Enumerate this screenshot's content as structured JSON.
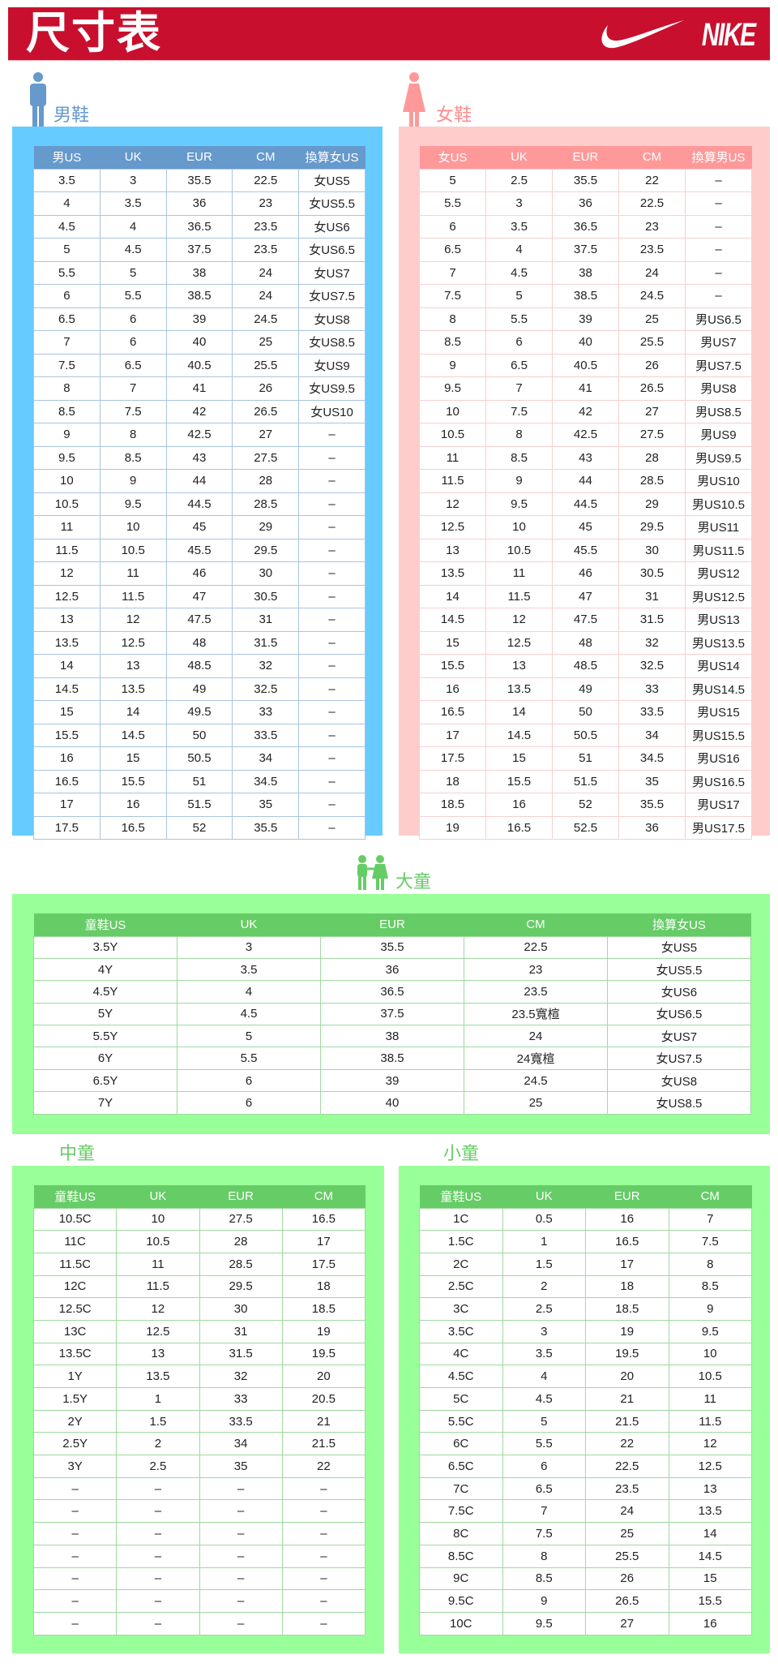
{
  "header": {
    "title": "尺寸表",
    "logo_text": "NIKE",
    "color": "#c8102e"
  },
  "men": {
    "label": "男鞋",
    "colors": {
      "panel": "#66ccff",
      "header": "#6699cc",
      "label": "#6699cc"
    },
    "columns": [
      "男US",
      "UK",
      "EUR",
      "CM",
      "換算女US"
    ],
    "rows": [
      [
        "3.5",
        "3",
        "35.5",
        "22.5",
        "女US5"
      ],
      [
        "4",
        "3.5",
        "36",
        "23",
        "女US5.5"
      ],
      [
        "4.5",
        "4",
        "36.5",
        "23.5",
        "女US6"
      ],
      [
        "5",
        "4.5",
        "37.5",
        "23.5",
        "女US6.5"
      ],
      [
        "5.5",
        "5",
        "38",
        "24",
        "女US7"
      ],
      [
        "6",
        "5.5",
        "38.5",
        "24",
        "女US7.5"
      ],
      [
        "6.5",
        "6",
        "39",
        "24.5",
        "女US8"
      ],
      [
        "7",
        "6",
        "40",
        "25",
        "女US8.5"
      ],
      [
        "7.5",
        "6.5",
        "40.5",
        "25.5",
        "女US9"
      ],
      [
        "8",
        "7",
        "41",
        "26",
        "女US9.5"
      ],
      [
        "8.5",
        "7.5",
        "42",
        "26.5",
        "女US10"
      ],
      [
        "9",
        "8",
        "42.5",
        "27",
        "–"
      ],
      [
        "9.5",
        "8.5",
        "43",
        "27.5",
        "–"
      ],
      [
        "10",
        "9",
        "44",
        "28",
        "–"
      ],
      [
        "10.5",
        "9.5",
        "44.5",
        "28.5",
        "–"
      ],
      [
        "11",
        "10",
        "45",
        "29",
        "–"
      ],
      [
        "11.5",
        "10.5",
        "45.5",
        "29.5",
        "–"
      ],
      [
        "12",
        "11",
        "46",
        "30",
        "–"
      ],
      [
        "12.5",
        "11.5",
        "47",
        "30.5",
        "–"
      ],
      [
        "13",
        "12",
        "47.5",
        "31",
        "–"
      ],
      [
        "13.5",
        "12.5",
        "48",
        "31.5",
        "–"
      ],
      [
        "14",
        "13",
        "48.5",
        "32",
        "–"
      ],
      [
        "14.5",
        "13.5",
        "49",
        "32.5",
        "–"
      ],
      [
        "15",
        "14",
        "49.5",
        "33",
        "–"
      ],
      [
        "15.5",
        "14.5",
        "50",
        "33.5",
        "–"
      ],
      [
        "16",
        "15",
        "50.5",
        "34",
        "–"
      ],
      [
        "16.5",
        "15.5",
        "51",
        "34.5",
        "–"
      ],
      [
        "17",
        "16",
        "51.5",
        "35",
        "–"
      ],
      [
        "17.5",
        "16.5",
        "52",
        "35.5",
        "–"
      ]
    ]
  },
  "women": {
    "label": "女鞋",
    "colors": {
      "panel": "#ffcccc",
      "header": "#ff9999",
      "label": "#ff8c8c"
    },
    "columns": [
      "女US",
      "UK",
      "EUR",
      "CM",
      "換算男US"
    ],
    "rows": [
      [
        "5",
        "2.5",
        "35.5",
        "22",
        "–"
      ],
      [
        "5.5",
        "3",
        "36",
        "22.5",
        "–"
      ],
      [
        "6",
        "3.5",
        "36.5",
        "23",
        "–"
      ],
      [
        "6.5",
        "4",
        "37.5",
        "23.5",
        "–"
      ],
      [
        "7",
        "4.5",
        "38",
        "24",
        "–"
      ],
      [
        "7.5",
        "5",
        "38.5",
        "24.5",
        "–"
      ],
      [
        "8",
        "5.5",
        "39",
        "25",
        "男US6.5"
      ],
      [
        "8.5",
        "6",
        "40",
        "25.5",
        "男US7"
      ],
      [
        "9",
        "6.5",
        "40.5",
        "26",
        "男US7.5"
      ],
      [
        "9.5",
        "7",
        "41",
        "26.5",
        "男US8"
      ],
      [
        "10",
        "7.5",
        "42",
        "27",
        "男US8.5"
      ],
      [
        "10.5",
        "8",
        "42.5",
        "27.5",
        "男US9"
      ],
      [
        "11",
        "8.5",
        "43",
        "28",
        "男US9.5"
      ],
      [
        "11.5",
        "9",
        "44",
        "28.5",
        "男US10"
      ],
      [
        "12",
        "9.5",
        "44.5",
        "29",
        "男US10.5"
      ],
      [
        "12.5",
        "10",
        "45",
        "29.5",
        "男US11"
      ],
      [
        "13",
        "10.5",
        "45.5",
        "30",
        "男US11.5"
      ],
      [
        "13.5",
        "11",
        "46",
        "30.5",
        "男US12"
      ],
      [
        "14",
        "11.5",
        "47",
        "31",
        "男US12.5"
      ],
      [
        "14.5",
        "12",
        "47.5",
        "31.5",
        "男US13"
      ],
      [
        "15",
        "12.5",
        "48",
        "32",
        "男US13.5"
      ],
      [
        "15.5",
        "13",
        "48.5",
        "32.5",
        "男US14"
      ],
      [
        "16",
        "13.5",
        "49",
        "33",
        "男US14.5"
      ],
      [
        "16.5",
        "14",
        "50",
        "33.5",
        "男US15"
      ],
      [
        "17",
        "14.5",
        "50.5",
        "34",
        "男US15.5"
      ],
      [
        "17.5",
        "15",
        "51",
        "34.5",
        "男US16"
      ],
      [
        "18",
        "15.5",
        "51.5",
        "35",
        "男US16.5"
      ],
      [
        "18.5",
        "16",
        "52",
        "35.5",
        "男US17"
      ],
      [
        "19",
        "16.5",
        "52.5",
        "36",
        "男US17.5"
      ]
    ]
  },
  "big_kids": {
    "label": "大童",
    "colors": {
      "panel": "#99ff99",
      "header": "#66cc66",
      "label": "#66cc66"
    },
    "columns": [
      "童鞋US",
      "UK",
      "EUR",
      "CM",
      "換算女US"
    ],
    "rows": [
      [
        "3.5Y",
        "3",
        "35.5",
        "22.5",
        "女US5"
      ],
      [
        "4Y",
        "3.5",
        "36",
        "23",
        "女US5.5"
      ],
      [
        "4.5Y",
        "4",
        "36.5",
        "23.5",
        "女US6"
      ],
      [
        "5Y",
        "4.5",
        "37.5",
        "23.5寬楦",
        "女US6.5"
      ],
      [
        "5.5Y",
        "5",
        "38",
        "24",
        "女US7"
      ],
      [
        "6Y",
        "5.5",
        "38.5",
        "24寬楦",
        "女US7.5"
      ],
      [
        "6.5Y",
        "6",
        "39",
        "24.5",
        "女US8"
      ],
      [
        "7Y",
        "6",
        "40",
        "25",
        "女US8.5"
      ]
    ]
  },
  "mid_kids": {
    "label": "中童",
    "columns": [
      "童鞋US",
      "UK",
      "EUR",
      "CM"
    ],
    "rows": [
      [
        "10.5C",
        "10",
        "27.5",
        "16.5"
      ],
      [
        "11C",
        "10.5",
        "28",
        "17"
      ],
      [
        "11.5C",
        "11",
        "28.5",
        "17.5"
      ],
      [
        "12C",
        "11.5",
        "29.5",
        "18"
      ],
      [
        "12.5C",
        "12",
        "30",
        "18.5"
      ],
      [
        "13C",
        "12.5",
        "31",
        "19"
      ],
      [
        "13.5C",
        "13",
        "31.5",
        "19.5"
      ],
      [
        "1Y",
        "13.5",
        "32",
        "20"
      ],
      [
        "1.5Y",
        "1",
        "33",
        "20.5"
      ],
      [
        "2Y",
        "1.5",
        "33.5",
        "21"
      ],
      [
        "2.5Y",
        "2",
        "34",
        "21.5"
      ],
      [
        "3Y",
        "2.5",
        "35",
        "22"
      ],
      [
        "–",
        "–",
        "–",
        "–"
      ],
      [
        "–",
        "–",
        "–",
        "–"
      ],
      [
        "–",
        "–",
        "–",
        "–"
      ],
      [
        "–",
        "–",
        "–",
        "–"
      ],
      [
        "–",
        "–",
        "–",
        "–"
      ],
      [
        "–",
        "–",
        "–",
        "–"
      ],
      [
        "–",
        "–",
        "–",
        "–"
      ]
    ]
  },
  "small_kids": {
    "label": "小童",
    "columns": [
      "童鞋US",
      "UK",
      "EUR",
      "CM"
    ],
    "rows": [
      [
        "1C",
        "0.5",
        "16",
        "7"
      ],
      [
        "1.5C",
        "1",
        "16.5",
        "7.5"
      ],
      [
        "2C",
        "1.5",
        "17",
        "8"
      ],
      [
        "2.5C",
        "2",
        "18",
        "8.5"
      ],
      [
        "3C",
        "2.5",
        "18.5",
        "9"
      ],
      [
        "3.5C",
        "3",
        "19",
        "9.5"
      ],
      [
        "4C",
        "3.5",
        "19.5",
        "10"
      ],
      [
        "4.5C",
        "4",
        "20",
        "10.5"
      ],
      [
        "5C",
        "4.5",
        "21",
        "11"
      ],
      [
        "5.5C",
        "5",
        "21.5",
        "11.5"
      ],
      [
        "6C",
        "5.5",
        "22",
        "12"
      ],
      [
        "6.5C",
        "6",
        "22.5",
        "12.5"
      ],
      [
        "7C",
        "6.5",
        "23.5",
        "13"
      ],
      [
        "7.5C",
        "7",
        "24",
        "13.5"
      ],
      [
        "8C",
        "7.5",
        "25",
        "14"
      ],
      [
        "8.5C",
        "8",
        "25.5",
        "14.5"
      ],
      [
        "9C",
        "8.5",
        "26",
        "15"
      ],
      [
        "9.5C",
        "9",
        "26.5",
        "15.5"
      ],
      [
        "10C",
        "9.5",
        "27",
        "16"
      ]
    ]
  }
}
